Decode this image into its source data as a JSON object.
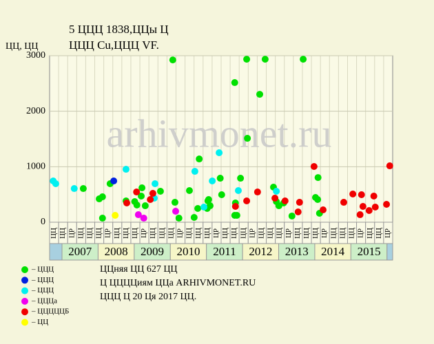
{
  "chart_data": {
    "type": "scatter",
    "title": "5 ЦЦЦ 1838,ЦЦы Ц",
    "subtitle": "ЦЦЦ Cu,ЦЦЦ VF.",
    "y_label": "ЦЦ, ЦЦ",
    "watermark": "arhivmonet.ru",
    "xlim": [
      2006.66,
      2016.13
    ],
    "ylim": [
      0,
      3000
    ],
    "yticks": [
      0,
      1000,
      2000,
      3000
    ],
    "grid": true,
    "years": [
      "2007",
      "2008",
      "2009",
      "2010",
      "2011",
      "2012",
      "2013",
      "2014",
      "2015"
    ],
    "quarter_labels": [
      "ЦЦ",
      "ЦЦ",
      "ЦР",
      "ЦЦ",
      "ЦЦ",
      "ЦЦ",
      "ЦР",
      "ЦЦ",
      "ЦЦ",
      "ЦЦ",
      "ЦР",
      "ЦЦ",
      "ЦЦ",
      "ЦЦ",
      "ЦР",
      "ЦЦ",
      "ЦЦ",
      "ЦЦ",
      "ЦР",
      "ЦЦ",
      "ЦЦ",
      "ЦЦ",
      "ЦР",
      "ЦЦ",
      "ЦЦ",
      "ЦЦ",
      "ЦР",
      "ЦЦ",
      "ЦЦ",
      "ЦЦ",
      "ЦР",
      "ЦЦ",
      "ЦЦ",
      "ЦЦ",
      "ЦР",
      "ЦЦ",
      "ЦЦ",
      "ЦР"
    ],
    "notes": [
      "ЦЦняя ЦЦ 627 ЦЦ",
      "Ц ЦЦЦЦиям ЦЦа ARHIVMONET.RU",
      "ЦЦЦ Ц 20 Ця 2017 ЦЦ."
    ],
    "series": [
      {
        "name": "– ЦЦЦ",
        "color": "#00e000",
        "x": [
          2007.59,
          2008.03,
          2008.12,
          2008.12,
          2008.33,
          2008.77,
          2009.07,
          2009.01,
          2009.19,
          2009.21,
          2009.3,
          2009.72,
          2010.06,
          2010.12,
          2010.23,
          2010.52,
          2010.65,
          2010.75,
          2010.79,
          2011.01,
          2011.03,
          2011.05,
          2011.09,
          2011.37,
          2011.41,
          2011.77,
          2011.79,
          2011.77,
          2011.83,
          2011.93,
          2012.1,
          2012.12,
          2012.46,
          2012.61,
          2012.84,
          2012.92,
          2012.99,
          2013.12,
          2013.35,
          2013.66,
          2014.0,
          2014.06,
          2014.07,
          2014.11
        ],
        "values": [
          607,
          421,
          458,
          74,
          694,
          384,
          310,
          372,
          471,
          620,
          297,
          558,
          2924,
          359,
          74,
          570,
          87,
          248,
          1140,
          248,
          384,
          409,
          297,
          793,
          496,
          2516,
          347,
          124,
          124,
          793,
          2937,
          1512,
          2305,
          2937,
          632,
          372,
          297,
          347,
          112,
          2937,
          446,
          409,
          805,
          161
        ]
      },
      {
        "name": "– ЦЦЦ",
        "color": "#0020e0",
        "x": [
          2008.43
        ],
        "values": [
          744
        ]
      },
      {
        "name": "– ЦЦЦ",
        "color": "#00f0f0",
        "x": [
          2006.76,
          2006.83,
          2007.34,
          2008.77,
          2009.55,
          2009.57,
          2010.67,
          2010.92,
          2011.15,
          2011.34,
          2011.87,
          2012.92
        ],
        "values": [
          744,
          694,
          607,
          954,
          434,
          694,
          917,
          273,
          744,
          1252,
          570,
          558
        ]
      },
      {
        "name": "– ЦЦЦа",
        "color": "#f000f0",
        "x": [
          2009.11,
          2009.26,
          2010.14
        ],
        "values": [
          136,
          74,
          198
        ]
      },
      {
        "name": "– ЦЦЦЦЦБ",
        "color": "#f00000",
        "x": [
          2008.79,
          2009.06,
          2009.44,
          2009.51,
          2011.79,
          2012.1,
          2012.4,
          2012.88,
          2013.16,
          2013.52,
          2013.56,
          2013.96,
          2014.21,
          2014.78,
          2015.03,
          2015.23,
          2015.27,
          2015.31,
          2015.48,
          2015.61,
          2015.65,
          2015.96,
          2016.05
        ],
        "values": [
          347,
          545,
          409,
          520,
          285,
          384,
          545,
          434,
          384,
          186,
          359,
          1004,
          223,
          359,
          508,
          136,
          496,
          285,
          211,
          471,
          273,
          322,
          1016
        ]
      },
      {
        "name": "– ЦЦ",
        "color": "#ffff00",
        "x": [
          2008.47
        ],
        "values": [
          124
        ]
      }
    ]
  }
}
